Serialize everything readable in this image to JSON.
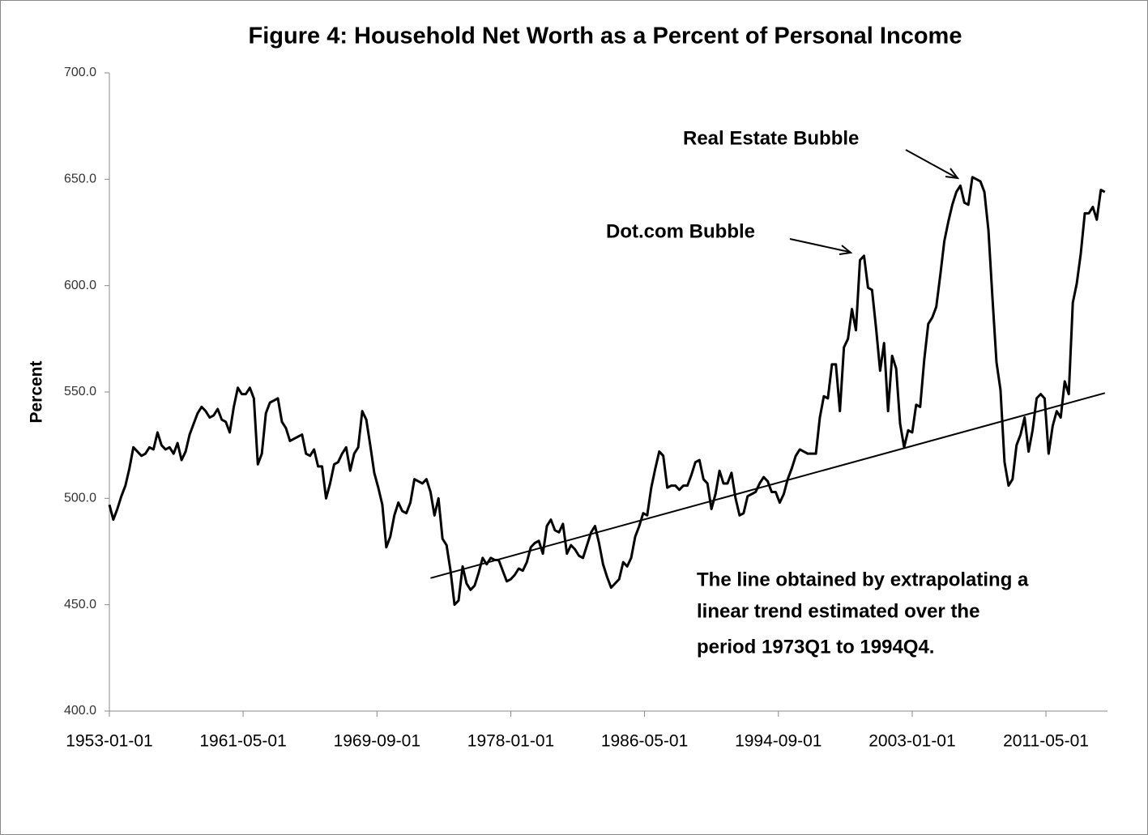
{
  "chart_data": {
    "type": "line",
    "title": "Figure 4: Household Net Worth as a Percent of Personal Income",
    "ylabel": "Percent",
    "annotations": [
      "Real Estate Bubble",
      "Dot.com Bubble"
    ],
    "note": [
      "The line obtained by extrapolating a",
      "linear trend estimated over the",
      "period  1973Q1 to  1994Q4."
    ],
    "x": [
      "1953-01-01",
      "1953-04-01",
      "1953-07-01",
      "1953-10-01",
      "1954-01-01",
      "1954-04-01",
      "1954-07-01",
      "1954-10-01",
      "1955-01-01",
      "1955-04-01",
      "1955-07-01",
      "1955-10-01",
      "1956-01-01",
      "1956-04-01",
      "1956-07-01",
      "1956-10-01",
      "1957-01-01",
      "1957-04-01",
      "1957-07-01",
      "1957-10-01",
      "1958-01-01",
      "1958-04-01",
      "1958-07-01",
      "1958-10-01",
      "1959-01-01",
      "1959-04-01",
      "1959-07-01",
      "1959-10-01",
      "1960-01-01",
      "1960-04-01",
      "1960-07-01",
      "1960-10-01",
      "1961-01-01",
      "1961-04-01",
      "1961-07-01",
      "1961-10-01",
      "1962-01-01",
      "1962-04-01",
      "1962-07-01",
      "1962-10-01",
      "1963-01-01",
      "1963-04-01",
      "1963-07-01",
      "1963-10-01",
      "1964-01-01",
      "1964-04-01",
      "1964-07-01",
      "1964-10-01",
      "1965-01-01",
      "1965-04-01",
      "1965-07-01",
      "1965-10-01",
      "1966-01-01",
      "1966-04-01",
      "1966-07-01",
      "1966-10-01",
      "1967-01-01",
      "1967-04-01",
      "1967-07-01",
      "1967-10-01",
      "1968-01-01",
      "1968-04-01",
      "1968-07-01",
      "1968-10-01",
      "1969-01-01",
      "1969-04-01",
      "1969-07-01",
      "1969-10-01",
      "1970-01-01",
      "1970-04-01",
      "1970-07-01",
      "1970-10-01",
      "1971-01-01",
      "1971-04-01",
      "1971-07-01",
      "1971-10-01",
      "1972-01-01",
      "1972-04-01",
      "1972-07-01",
      "1972-10-01",
      "1973-01-01",
      "1973-04-01",
      "1973-07-01",
      "1973-10-01",
      "1974-01-01",
      "1974-04-01",
      "1974-07-01",
      "1974-10-01",
      "1975-01-01",
      "1975-04-01",
      "1975-07-01",
      "1975-10-01",
      "1976-01-01",
      "1976-04-01",
      "1976-07-01",
      "1976-10-01",
      "1977-01-01",
      "1977-04-01",
      "1977-07-01",
      "1977-10-01",
      "1978-01-01",
      "1978-04-01",
      "1978-07-01",
      "1978-10-01",
      "1979-01-01",
      "1979-04-01",
      "1979-07-01",
      "1979-10-01",
      "1980-01-01",
      "1980-04-01",
      "1980-07-01",
      "1980-10-01",
      "1981-01-01",
      "1981-04-01",
      "1981-07-01",
      "1981-10-01",
      "1982-01-01",
      "1982-04-01",
      "1982-07-01",
      "1982-10-01",
      "1983-01-01",
      "1983-04-01",
      "1983-07-01",
      "1983-10-01",
      "1984-01-01",
      "1984-04-01",
      "1984-07-01",
      "1984-10-01",
      "1985-01-01",
      "1985-04-01",
      "1985-07-01",
      "1985-10-01",
      "1986-01-01",
      "1986-04-01",
      "1986-07-01",
      "1986-10-01",
      "1987-01-01",
      "1987-04-01",
      "1987-07-01",
      "1987-10-01",
      "1988-01-01",
      "1988-04-01",
      "1988-07-01",
      "1988-10-01",
      "1989-01-01",
      "1989-04-01",
      "1989-07-01",
      "1989-10-01",
      "1990-01-01",
      "1990-04-01",
      "1990-07-01",
      "1990-10-01",
      "1991-01-01",
      "1991-04-01",
      "1991-07-01",
      "1991-10-01",
      "1992-01-01",
      "1992-04-01",
      "1992-07-01",
      "1992-10-01",
      "1993-01-01",
      "1993-04-01",
      "1993-07-01",
      "1993-10-01",
      "1994-01-01",
      "1994-04-01",
      "1994-07-01",
      "1994-10-01",
      "1995-01-01",
      "1995-04-01",
      "1995-07-01",
      "1995-10-01",
      "1996-01-01",
      "1996-04-01",
      "1996-07-01",
      "1996-10-01",
      "1997-01-01",
      "1997-04-01",
      "1997-07-01",
      "1997-10-01",
      "1998-01-01",
      "1998-04-01",
      "1998-07-01",
      "1998-10-01",
      "1999-01-01",
      "1999-04-01",
      "1999-07-01",
      "1999-10-01",
      "2000-01-01",
      "2000-04-01",
      "2000-07-01",
      "2000-10-01",
      "2001-01-01",
      "2001-04-01",
      "2001-07-01",
      "2001-10-01",
      "2002-01-01",
      "2002-04-01",
      "2002-07-01",
      "2002-10-01",
      "2003-01-01",
      "2003-04-01",
      "2003-07-01",
      "2003-10-01",
      "2004-01-01",
      "2004-04-01",
      "2004-07-01",
      "2004-10-01",
      "2005-01-01",
      "2005-04-01",
      "2005-07-01",
      "2005-10-01",
      "2006-01-01",
      "2006-04-01",
      "2006-07-01",
      "2006-10-01",
      "2007-01-01",
      "2007-04-01",
      "2007-07-01",
      "2007-10-01",
      "2008-01-01",
      "2008-04-01",
      "2008-07-01",
      "2008-10-01",
      "2009-01-01",
      "2009-04-01",
      "2009-07-01",
      "2009-10-01",
      "2010-01-01",
      "2010-04-01",
      "2010-07-01",
      "2010-10-01",
      "2011-01-01",
      "2011-04-01",
      "2011-07-01",
      "2011-10-01",
      "2012-01-01",
      "2012-04-01",
      "2012-07-01",
      "2012-10-01",
      "2013-01-01",
      "2013-04-01",
      "2013-07-01",
      "2013-10-01",
      "2014-01-01",
      "2014-04-01",
      "2014-07-01",
      "2014-10-01",
      "2015-01-01"
    ],
    "series": [
      {
        "color": "#000000",
        "values": [
          497,
          490,
          495,
          501,
          506,
          514,
          524,
          522,
          520,
          521,
          524,
          523,
          531,
          525,
          523,
          524,
          521,
          526,
          518,
          522,
          530,
          535,
          540,
          543,
          541,
          538,
          539,
          542,
          537,
          536,
          531,
          543,
          552,
          549,
          549,
          552,
          547,
          516,
          521,
          540,
          545,
          546,
          547,
          536,
          533,
          527,
          528,
          529,
          530,
          521,
          520,
          523,
          515,
          515,
          500,
          507,
          516,
          517,
          521,
          524,
          513,
          521,
          524,
          541,
          537,
          525,
          512,
          505,
          497,
          477,
          482,
          492,
          498,
          494,
          493,
          498,
          509,
          508,
          507,
          509,
          503,
          492,
          500,
          481,
          478,
          466,
          450,
          452,
          468,
          460,
          457,
          459,
          465,
          472,
          469,
          472,
          471,
          471,
          466,
          461,
          462,
          464,
          467,
          466,
          470,
          477,
          479,
          480,
          474,
          487,
          490,
          485,
          484,
          488,
          474,
          478,
          476,
          473,
          472,
          478,
          484,
          487,
          479,
          469,
          463,
          458,
          460,
          462,
          470,
          468,
          472,
          482,
          487,
          493,
          492,
          505,
          514,
          522,
          520,
          505,
          506,
          506,
          504,
          506,
          506,
          511,
          517,
          518,
          509,
          507,
          495,
          502,
          513,
          507,
          507,
          512,
          500,
          492,
          493,
          501,
          502,
          503,
          507,
          510,
          508,
          503,
          503,
          498,
          502,
          509,
          514,
          520,
          523,
          522,
          521,
          521,
          521,
          538,
          548,
          547,
          563,
          563,
          541,
          571,
          575,
          589,
          579,
          612,
          614,
          599,
          598,
          580,
          560,
          573,
          541,
          567,
          561,
          535,
          524,
          532,
          531,
          544,
          543,
          565,
          582,
          585,
          590,
          605,
          621,
          630,
          638,
          644,
          647,
          639,
          638,
          651,
          650,
          649,
          644,
          626,
          594,
          564,
          551,
          517,
          506,
          509,
          525,
          530,
          538,
          522,
          532,
          547,
          549,
          547,
          521,
          534,
          541,
          538,
          555,
          549,
          592,
          601,
          615,
          634,
          634,
          637,
          631,
          645,
          644
        ]
      },
      {
        "color": "#000000",
        "x": [
          "1973-01-01",
          "2015-01-01"
        ],
        "values": [
          462.5,
          549.5
        ]
      }
    ],
    "xlim": [
      "1953-01-01",
      "2015-03-01"
    ],
    "xticks": [
      "1953-01-01",
      "1961-05-01",
      "1969-09-01",
      "1978-01-01",
      "1986-05-01",
      "1994-09-01",
      "2003-01-01",
      "2011-05-01"
    ],
    "ylim": [
      400,
      700
    ],
    "yticks": [
      {
        "value": 400,
        "label": "400.0"
      },
      {
        "value": 450,
        "label": "450.0"
      },
      {
        "value": 500,
        "label": "500.0"
      },
      {
        "value": 550,
        "label": "550.0"
      },
      {
        "value": 600,
        "label": "600.0"
      },
      {
        "value": 650,
        "label": "650.0"
      },
      {
        "value": 700,
        "label": "700.0"
      }
    ],
    "grid": false
  }
}
